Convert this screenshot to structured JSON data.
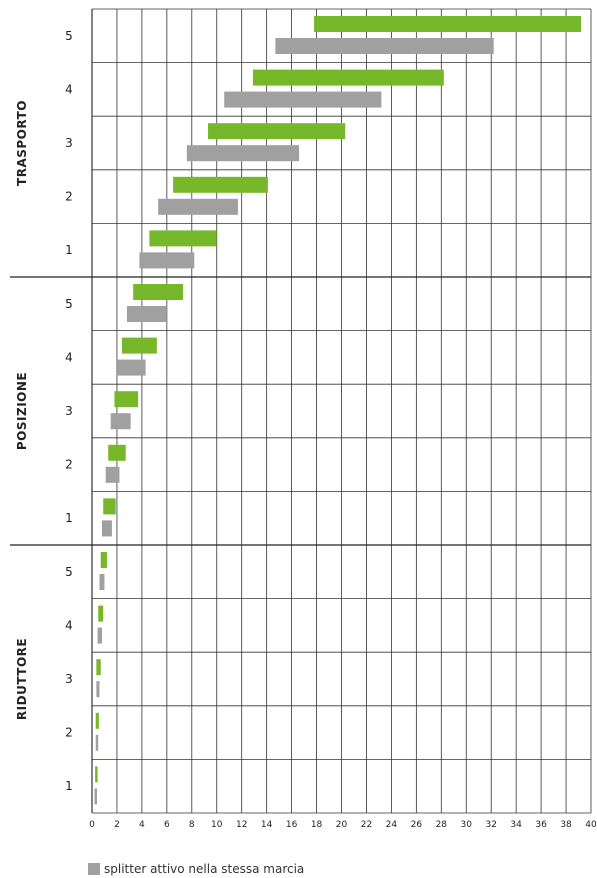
{
  "chart_data": {
    "type": "bar",
    "orientation": "horizontal-range",
    "xlim": [
      0,
      40
    ],
    "x_ticks": [
      0,
      2,
      4,
      6,
      8,
      10,
      12,
      14,
      16,
      18,
      20,
      22,
      24,
      26,
      28,
      30,
      32,
      34,
      36,
      38,
      40
    ],
    "grid": true,
    "colors": {
      "green": "#76b82a",
      "gray": "#a0a0a0"
    },
    "groups": [
      {
        "label": "TRASPORTO",
        "gears": [
          {
            "label": "5",
            "green": [
              17.8,
              39.2
            ],
            "gray": [
              14.7,
              32.2
            ]
          },
          {
            "label": "4",
            "green": [
              12.9,
              28.2
            ],
            "gray": [
              10.6,
              23.2
            ]
          },
          {
            "label": "3",
            "green": [
              9.3,
              20.3
            ],
            "gray": [
              7.6,
              16.6
            ]
          },
          {
            "label": "2",
            "green": [
              6.5,
              14.1
            ],
            "gray": [
              5.3,
              11.7
            ]
          },
          {
            "label": "1",
            "green": [
              4.6,
              10.0
            ],
            "gray": [
              3.8,
              8.2
            ]
          }
        ]
      },
      {
        "label": "POSIZIONE",
        "gears": [
          {
            "label": "5",
            "green": [
              3.3,
              7.3
            ],
            "gray": [
              2.8,
              6.0
            ]
          },
          {
            "label": "4",
            "green": [
              2.4,
              5.2
            ],
            "gray": [
              2.0,
              4.3
            ]
          },
          {
            "label": "3",
            "green": [
              1.8,
              3.7
            ],
            "gray": [
              1.5,
              3.1
            ]
          },
          {
            "label": "2",
            "green": [
              1.3,
              2.7
            ],
            "gray": [
              1.1,
              2.2
            ]
          },
          {
            "label": "1",
            "green": [
              0.9,
              1.9
            ],
            "gray": [
              0.8,
              1.6
            ]
          }
        ]
      },
      {
        "label": "RIDUTTORE",
        "gears": [
          {
            "label": "5",
            "green": [
              0.7,
              1.2
            ],
            "gray": [
              0.6,
              1.0
            ]
          },
          {
            "label": "4",
            "green": [
              0.5,
              0.9
            ],
            "gray": [
              0.45,
              0.8
            ]
          },
          {
            "label": "3",
            "green": [
              0.35,
              0.7
            ],
            "gray": [
              0.35,
              0.6
            ]
          },
          {
            "label": "2",
            "green": [
              0.3,
              0.55
            ],
            "gray": [
              0.3,
              0.5
            ]
          },
          {
            "label": "1",
            "green": [
              0.25,
              0.45
            ],
            "gray": [
              0.2,
              0.4
            ]
          }
        ]
      }
    ],
    "legend": [
      {
        "color": "#a0a0a0",
        "label": "splitter attivo nella stessa marcia"
      }
    ]
  }
}
